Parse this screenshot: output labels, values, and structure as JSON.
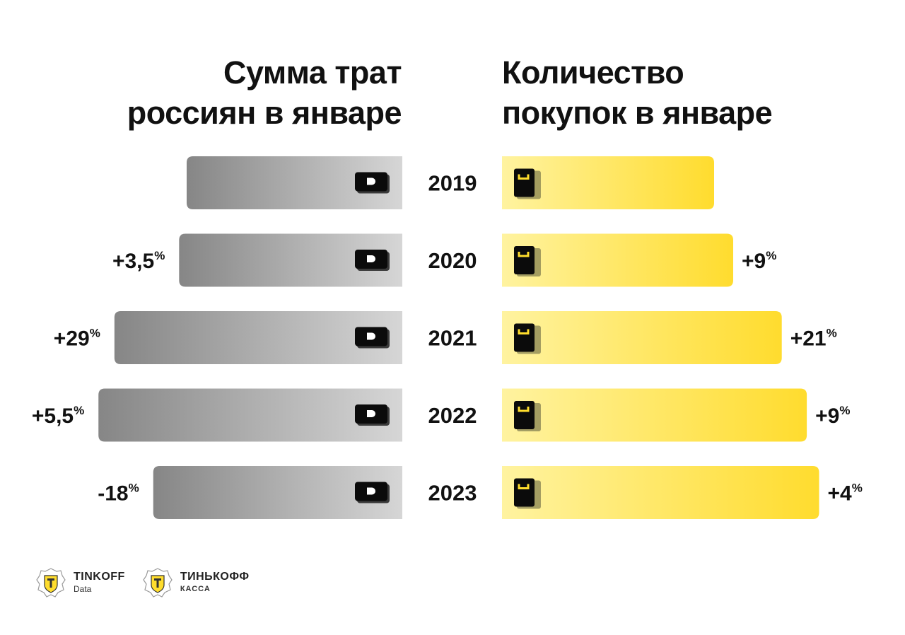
{
  "titles": {
    "left": [
      "Сумма трат",
      "россиян в январе"
    ],
    "right": [
      "Количество",
      "покупок в январе"
    ]
  },
  "chart_data": {
    "type": "bar",
    "categories": [
      "2019",
      "2020",
      "2021",
      "2022",
      "2023"
    ],
    "series": [
      {
        "name": "Сумма трат россиян в январе",
        "index": [
          100,
          103.5,
          133.5,
          140.9,
          115.5
        ],
        "change_labels": [
          "",
          "+3,5",
          "+29",
          "+5,5",
          "-18"
        ],
        "unit": "%",
        "direction": "left",
        "color_light": "#d6d6d6",
        "color_dark": "#868686"
      },
      {
        "name": "Количество покупок в январе",
        "index": [
          100,
          109,
          131.9,
          143.7,
          149.5
        ],
        "change_labels": [
          "",
          "+9",
          "+21",
          "+9",
          "+4"
        ],
        "unit": "%",
        "direction": "right",
        "color_light": "#fff3a0",
        "color_dark": "#ffdc2e"
      }
    ]
  },
  "logos": [
    {
      "name": "TINKOFF",
      "sub": "Data",
      "icon": "tinkoff-crest-icon"
    },
    {
      "name": "ТИНЬКОФФ",
      "sub": "КАССА",
      "icon": "tinkoff-crest-icon"
    }
  ]
}
